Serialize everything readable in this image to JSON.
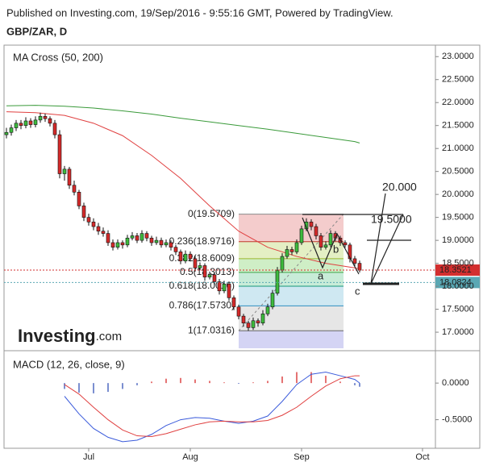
{
  "header": {
    "published": "Published on Investing.com, 19/Sep/2016 - 9:55:16 GMT, Powered by TradingView.",
    "symbol": "GBP/ZAR, D",
    "logo": [
      "Investing",
      ".com"
    ]
  },
  "annotations": [
    "20.000",
    "19.5000",
    "a",
    "b",
    "c"
  ],
  "chart_data": [
    {
      "type": "candlestick",
      "title": "MA Cross (50, 200)",
      "xlim": [
        -0.5,
        88.67
      ],
      "ylim": [
        16.65,
        23.25
      ],
      "grid": false,
      "up_color": "#3dbb3d",
      "down_color": "#d42a2a",
      "yticks": [
        {
          "value": 17,
          "label": "17.0000"
        },
        {
          "value": 17.5,
          "label": "17.5000"
        },
        {
          "value": 18,
          "label": "18.0000"
        },
        {
          "value": 18.5,
          "label": "18.5000"
        },
        {
          "value": 19,
          "label": "19.0000"
        },
        {
          "value": 19.5,
          "label": "19.5000"
        },
        {
          "value": 20,
          "label": "20.0000"
        },
        {
          "value": 20.5,
          "label": "20.5000"
        },
        {
          "value": 21,
          "label": "21.0000"
        },
        {
          "value": 21.5,
          "label": "21.5000"
        },
        {
          "value": 22,
          "label": "22.0000"
        },
        {
          "value": 22.5,
          "label": "22.5000"
        },
        {
          "value": 23,
          "label": "23.0000"
        }
      ],
      "candles": [
        [
          21.3,
          21.45,
          21.22,
          21.35
        ],
        [
          21.35,
          21.52,
          21.28,
          21.45
        ],
        [
          21.45,
          21.62,
          21.38,
          21.55
        ],
        [
          21.55,
          21.62,
          21.42,
          21.5
        ],
        [
          21.5,
          21.68,
          21.44,
          21.6
        ],
        [
          21.6,
          21.66,
          21.45,
          21.52
        ],
        [
          21.52,
          21.7,
          21.46,
          21.62
        ],
        [
          21.62,
          21.78,
          21.56,
          21.7
        ],
        [
          21.7,
          21.76,
          21.58,
          21.65
        ],
        [
          21.65,
          21.7,
          21.48,
          21.55
        ],
        [
          21.55,
          21.62,
          21.22,
          21.3
        ],
        [
          21.3,
          21.4,
          20.35,
          20.45
        ],
        [
          20.45,
          20.62,
          20.3,
          20.55
        ],
        [
          20.55,
          20.6,
          20.12,
          20.2
        ],
        [
          20.2,
          20.3,
          19.98,
          20.05
        ],
        [
          20.05,
          20.1,
          19.68,
          19.75
        ],
        [
          19.75,
          19.82,
          19.42,
          19.5
        ],
        [
          19.5,
          19.58,
          19.32,
          19.4
        ],
        [
          19.4,
          19.48,
          19.22,
          19.3
        ],
        [
          19.3,
          19.38,
          19.12,
          19.2
        ],
        [
          19.2,
          19.28,
          19.08,
          19.15
        ],
        [
          19.15,
          19.22,
          18.88,
          18.95
        ],
        [
          18.95,
          19.02,
          18.78,
          18.85
        ],
        [
          18.85,
          19.02,
          18.8,
          18.95
        ],
        [
          18.95,
          19.0,
          18.82,
          18.9
        ],
        [
          18.9,
          19.12,
          18.85,
          19.05
        ],
        [
          19.05,
          19.18,
          19.0,
          19.1
        ],
        [
          19.1,
          19.16,
          18.94,
          19.0
        ],
        [
          19.0,
          19.22,
          18.95,
          19.15
        ],
        [
          19.15,
          19.2,
          18.98,
          19.05
        ],
        [
          19.05,
          19.1,
          18.88,
          18.95
        ],
        [
          18.95,
          19.08,
          18.9,
          19.0
        ],
        [
          19.0,
          19.06,
          18.84,
          18.9
        ],
        [
          18.9,
          19.02,
          18.85,
          18.95
        ],
        [
          18.95,
          19.0,
          18.78,
          18.85
        ],
        [
          18.85,
          18.9,
          18.68,
          18.75
        ],
        [
          18.75,
          18.8,
          18.48,
          18.55
        ],
        [
          18.55,
          18.78,
          18.5,
          18.7
        ],
        [
          18.7,
          18.76,
          18.54,
          18.6
        ],
        [
          18.6,
          18.66,
          18.32,
          18.4
        ],
        [
          18.4,
          18.52,
          18.35,
          18.45
        ],
        [
          18.45,
          18.5,
          18.12,
          18.2
        ],
        [
          18.2,
          18.32,
          18.15,
          18.25
        ],
        [
          18.25,
          18.3,
          18.02,
          18.1
        ],
        [
          18.1,
          18.16,
          17.82,
          17.9
        ],
        [
          17.9,
          18.12,
          17.85,
          18.05
        ],
        [
          18.05,
          18.1,
          17.68,
          17.75
        ],
        [
          17.75,
          17.8,
          17.48,
          17.55
        ],
        [
          17.55,
          17.6,
          17.28,
          17.35
        ],
        [
          17.35,
          17.4,
          17.12,
          17.2
        ],
        [
          17.2,
          17.25,
          17.03,
          17.1
        ],
        [
          17.1,
          17.32,
          17.05,
          17.25
        ],
        [
          17.25,
          17.3,
          17.12,
          17.2
        ],
        [
          17.2,
          17.48,
          17.15,
          17.4
        ],
        [
          17.4,
          17.62,
          17.35,
          17.55
        ],
        [
          17.55,
          17.92,
          17.5,
          17.85
        ],
        [
          17.85,
          18.42,
          17.8,
          18.35
        ],
        [
          18.35,
          18.72,
          18.3,
          18.65
        ],
        [
          18.65,
          18.88,
          18.6,
          18.8
        ],
        [
          18.8,
          18.86,
          18.68,
          18.75
        ],
        [
          18.75,
          19.02,
          18.7,
          18.95
        ],
        [
          18.95,
          19.32,
          18.9,
          19.25
        ],
        [
          19.25,
          19.48,
          19.2,
          19.4
        ],
        [
          19.4,
          19.46,
          19.22,
          19.3
        ],
        [
          19.3,
          19.36,
          19.02,
          19.1
        ],
        [
          19.1,
          19.16,
          18.78,
          18.85
        ],
        [
          18.85,
          18.98,
          18.8,
          18.9
        ],
        [
          18.9,
          19.22,
          18.85,
          19.15
        ],
        [
          19.15,
          19.2,
          18.98,
          19.05
        ],
        [
          19.05,
          19.1,
          18.88,
          18.95
        ],
        [
          18.95,
          19.0,
          18.84,
          18.9
        ],
        [
          18.9,
          18.95,
          18.52,
          18.6
        ],
        [
          18.6,
          18.66,
          18.44,
          18.5
        ],
        [
          18.5,
          18.56,
          18.3,
          18.35
        ]
      ],
      "series": [
        {
          "color": "#3a9a3a",
          "x": [
            0,
            6,
            12,
            18,
            24,
            30,
            36,
            42,
            48,
            54,
            60,
            66,
            72,
            73
          ],
          "values": [
            21.93,
            21.94,
            21.92,
            21.88,
            21.82,
            21.75,
            21.66,
            21.58,
            21.5,
            21.42,
            21.33,
            21.24,
            21.15,
            21.12
          ]
        },
        {
          "color": "#e04040",
          "x": [
            0,
            6,
            12,
            18,
            24,
            30,
            36,
            42,
            48,
            54,
            60,
            66,
            72,
            73
          ],
          "values": [
            21.8,
            21.78,
            21.72,
            21.55,
            21.28,
            20.85,
            20.35,
            19.75,
            19.2,
            18.85,
            18.65,
            18.5,
            18.4,
            18.38
          ]
        }
      ],
      "fib_levels": [
        {
          "label": "0(19.5709)",
          "value": 19.5709,
          "color": "#8a8a8a",
          "fill": "#f4cccc"
        },
        {
          "label": "0.236(18.9716)",
          "value": 18.9716,
          "color": "#c0392b",
          "fill": "#e4efc4"
        },
        {
          "label": "0.382(18.6009)",
          "value": 18.6009,
          "color": "#9ab82e",
          "fill": "#cfeec6"
        },
        {
          "label": "0.5(18.3013)",
          "value": 18.3013,
          "color": "#3fa54a",
          "fill": "#c8ecd8"
        },
        {
          "label": "0.618(18.0016)",
          "value": 18.0016,
          "color": "#16977a",
          "fill": "#cfe8f2"
        },
        {
          "label": "0.786(17.5730)",
          "value": 17.573,
          "color": "#2f8fc0",
          "fill": "#e6e6e6"
        },
        {
          "label": "1(17.0316)",
          "value": 17.0316,
          "color": "#666666",
          "fill": "#d4d4f4"
        }
      ],
      "price_labels": [
        {
          "label": "18.3521",
          "value": 18.3521,
          "color": "#d32f2f"
        },
        {
          "label": "18.0824",
          "value": 18.0824,
          "color": "#5aa8b4"
        }
      ]
    },
    {
      "type": "macd",
      "title": "MACD (12, 26, close, 9)",
      "xlim": [
        -0.5,
        88.67
      ],
      "ylim": [
        -0.89,
        0.42
      ],
      "grid": false,
      "yticks": [
        {
          "value": 0,
          "label": "0.0000"
        },
        {
          "value": -0.5,
          "label": "-0.5000"
        }
      ],
      "xticks": [
        {
          "value": 17,
          "label": "Jul"
        },
        {
          "value": 38,
          "label": "Aug"
        },
        {
          "value": 61,
          "label": "Sep"
        },
        {
          "value": 86,
          "label": "Oct"
        }
      ],
      "series": [
        {
          "color": "#3b5bdb",
          "x": [
            12,
            15,
            18,
            21,
            24,
            27,
            30,
            33,
            36,
            39,
            42,
            45,
            48,
            51,
            54,
            57,
            60,
            63,
            66,
            69,
            72,
            73
          ],
          "values": [
            -0.18,
            -0.42,
            -0.62,
            -0.74,
            -0.8,
            -0.78,
            -0.7,
            -0.58,
            -0.5,
            -0.47,
            -0.48,
            -0.52,
            -0.55,
            -0.52,
            -0.45,
            -0.25,
            -0.02,
            0.12,
            0.15,
            0.1,
            0.05,
            0.0
          ]
        },
        {
          "color": "#e04040",
          "x": [
            12,
            15,
            18,
            21,
            24,
            27,
            30,
            33,
            36,
            39,
            42,
            45,
            48,
            51,
            54,
            57,
            60,
            63,
            66,
            69,
            72,
            73
          ],
          "values": [
            -0.02,
            -0.15,
            -0.33,
            -0.5,
            -0.64,
            -0.72,
            -0.73,
            -0.69,
            -0.63,
            -0.57,
            -0.53,
            -0.52,
            -0.53,
            -0.53,
            -0.51,
            -0.44,
            -0.33,
            -0.18,
            -0.04,
            0.06,
            0.1,
            0.1
          ]
        }
      ],
      "histogram": {
        "up_color": "#e57373",
        "down_color": "#7b8fd0",
        "x": [
          12,
          15,
          18,
          21,
          24,
          27,
          30,
          33,
          36,
          39,
          42,
          45,
          48,
          51,
          54,
          57,
          60,
          63,
          66,
          69,
          72,
          73
        ],
        "values": [
          -0.08,
          -0.13,
          -0.14,
          -0.12,
          -0.08,
          -0.03,
          0.02,
          0.06,
          0.07,
          0.05,
          0.03,
          0.01,
          -0.01,
          0.01,
          0.03,
          0.09,
          0.15,
          0.15,
          0.1,
          0.02,
          -0.03,
          -0.05
        ]
      }
    }
  ]
}
